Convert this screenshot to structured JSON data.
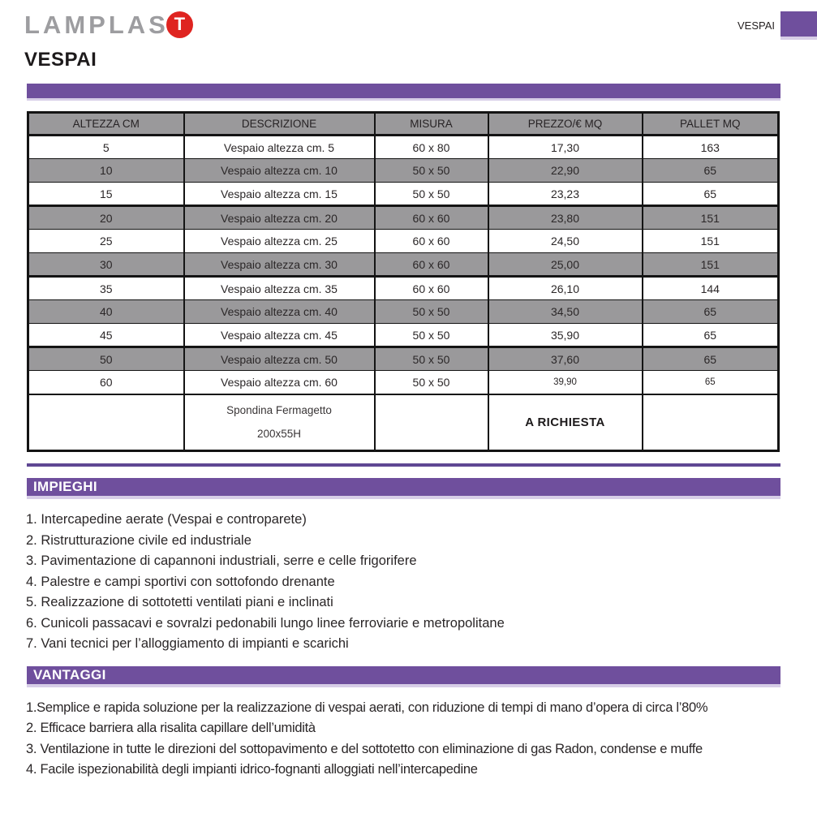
{
  "brand": {
    "logo_text": "LAMPLAS",
    "logo_t": "T",
    "corner_label": "VESPAI"
  },
  "page": {
    "title": "VESPAI"
  },
  "table": {
    "columns": [
      "ALTEZZA CM",
      "DESCRIZIONE",
      "MISURA",
      "PREZZO/€ MQ",
      "PALLET MQ"
    ],
    "rows": [
      {
        "altezza": "5",
        "descrizione": "Vespaio altezza cm. 5",
        "misura": "60 x 80",
        "prezzo": "17,30",
        "pallet": "163"
      },
      {
        "altezza": "10",
        "descrizione": "Vespaio altezza cm. 10",
        "misura": "50 x 50",
        "prezzo": "22,90",
        "pallet": "65"
      },
      {
        "altezza": "15",
        "descrizione": "Vespaio altezza cm. 15",
        "misura": "50 x 50",
        "prezzo": "23,23",
        "pallet": "65"
      },
      {
        "altezza": "20",
        "descrizione": "Vespaio altezza cm. 20",
        "misura": "60 x 60",
        "prezzo": "23,80",
        "pallet": "151"
      },
      {
        "altezza": "25",
        "descrizione": "Vespaio altezza cm. 25",
        "misura": "60 x 60",
        "prezzo": "24,50",
        "pallet": "151"
      },
      {
        "altezza": "30",
        "descrizione": "Vespaio altezza cm. 30",
        "misura": "60 x 60",
        "prezzo": "25,00",
        "pallet": "151"
      },
      {
        "altezza": "35",
        "descrizione": "Vespaio altezza cm. 35",
        "misura": "60 x 60",
        "prezzo": "26,10",
        "pallet": "144"
      },
      {
        "altezza": "40",
        "descrizione": "Vespaio altezza cm. 40",
        "misura": "50 x 50",
        "prezzo": "34,50",
        "pallet": "65"
      },
      {
        "altezza": "45",
        "descrizione": "Vespaio altezza cm. 45",
        "misura": "50 x 50",
        "prezzo": "35,90",
        "pallet": "65"
      },
      {
        "altezza": "50",
        "descrizione": "Vespaio altezza cm. 50",
        "misura": "50 x 50",
        "prezzo": "37,60",
        "pallet": "65"
      },
      {
        "altezza": "60",
        "descrizione": "Vespaio altezza cm. 60",
        "misura": "50 x 50",
        "prezzo": "39,90",
        "pallet": "65"
      }
    ],
    "special_row": {
      "descrizione_line1": "Spondina Fermagetto",
      "descrizione_line2": "200x55H",
      "prezzo": "A RICHIESTA"
    }
  },
  "sections": {
    "impieghi": {
      "title": "IMPIEGHI",
      "items": [
        "1. Intercapedine aerate (Vespai e controparete)",
        "2. Ristrutturazione civile ed industriale",
        "3. Pavimentazione di capannoni industriali, serre e celle frigorifere",
        "4. Palestre e campi sportivi con sottofondo drenante",
        "5. Realizzazione di sottotetti ventilati piani e inclinati",
        "6. Cunicoli passacavi e sovralzi pedonabili lungo linee ferroviarie e metropolitane",
        "7. Vani tecnici per l’alloggiamento di impianti e scarichi"
      ]
    },
    "vantaggi": {
      "title": "VANTAGGI",
      "items": [
        "1.Semplice e rapida soluzione per la realizzazione di vespai aerati, con riduzione di tempi di mano d’opera di circa l’80%",
        "2. Efficace barriera alla risalita capillare dell’umidità",
        "3. Ventilazione in tutte le direzioni del sottopavimento e del sottotetto con eliminazione di gas Radon, condense e muffe",
        "4. Facile ispezionabilità degli impianti idrico-fognanti alloggiati nell’intercapedine"
      ]
    }
  },
  "colors": {
    "purple": "#6f4f9d",
    "purple_rule": "#5f4793",
    "lavender_edge": "#d7cde7",
    "row_gray": "#9a999b",
    "logo_gray": "#9d9da0",
    "logo_red": "#df2420",
    "border_black": "#141414",
    "text_dark": "#262223"
  }
}
